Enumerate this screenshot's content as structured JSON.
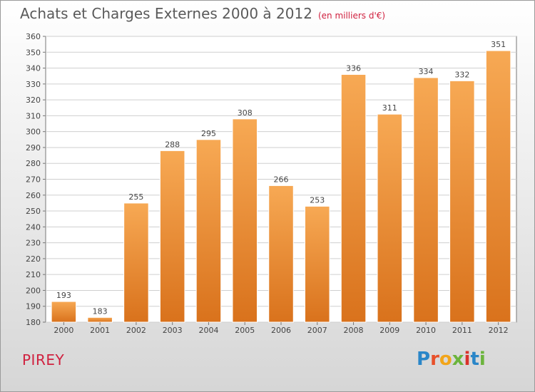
{
  "header": {
    "title": "Achats et Charges Externes 2000 à 2012",
    "unit_note": "(en milliers d'€)"
  },
  "footer": {
    "place_name": "PIREY",
    "brand": [
      {
        "char": "P",
        "color": "#2a86c8"
      },
      {
        "char": "r",
        "color": "#e8502a"
      },
      {
        "char": "o",
        "color": "#f2a51a"
      },
      {
        "char": "x",
        "color": "#6bb43c"
      },
      {
        "char": "i",
        "color": "#d9322c"
      },
      {
        "char": "t",
        "color": "#2a86c8"
      },
      {
        "char": "i",
        "color": "#6bb43c"
      }
    ]
  },
  "chart_data": {
    "type": "bar",
    "title": "Achats et Charges Externes 2000 à 2012",
    "subtitle": "(en milliers d'€)",
    "categories": [
      "2000",
      "2001",
      "2002",
      "2003",
      "2004",
      "2005",
      "2006",
      "2007",
      "2008",
      "2009",
      "2010",
      "2011",
      "2012"
    ],
    "values": [
      193,
      183,
      255,
      288,
      295,
      308,
      266,
      253,
      336,
      311,
      334,
      332,
      351
    ],
    "ylim": [
      180,
      360
    ],
    "ytick_step": 10,
    "grid": true,
    "show_value_labels": true,
    "bar_color_top": "#f7a954",
    "bar_color_bottom": "#d9721c",
    "grid_color": "#cfcfcf"
  }
}
